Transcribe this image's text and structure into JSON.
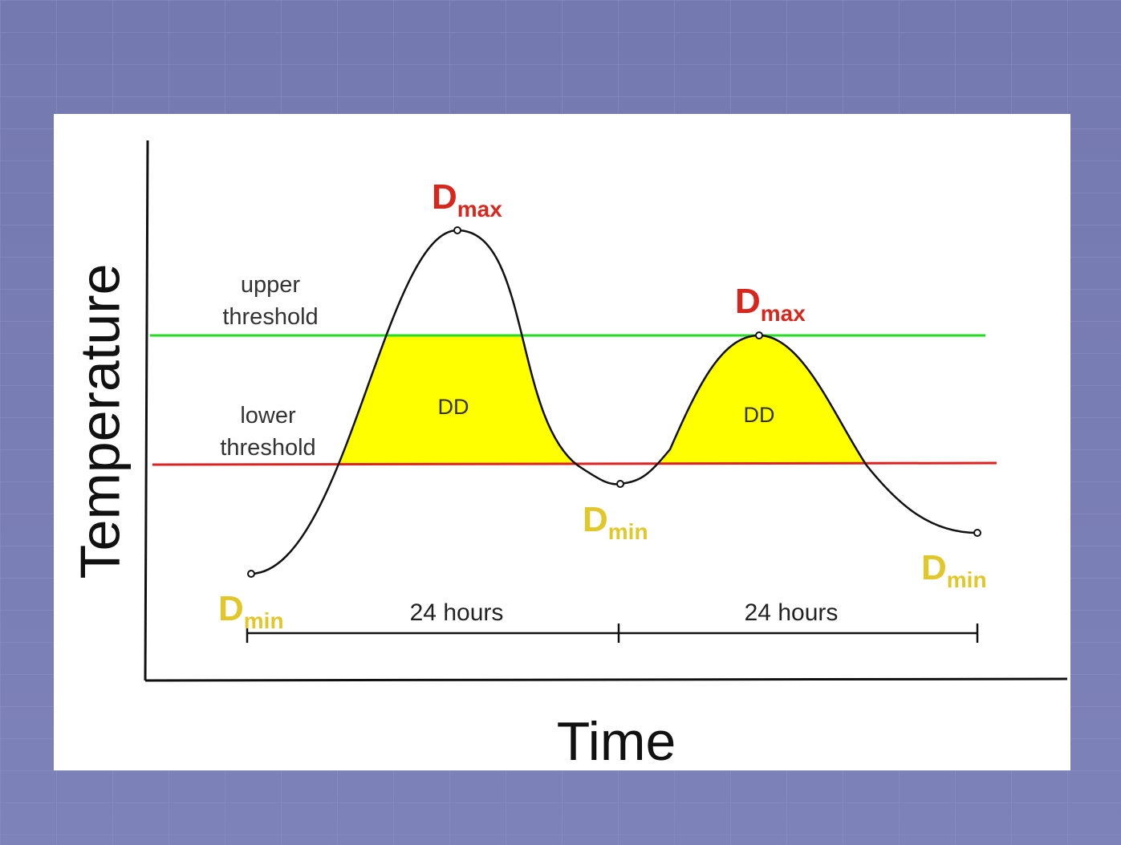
{
  "y_axis_label": "Temperature",
  "x_axis_label": "Time",
  "thresholds": [
    {
      "lines": [
        "upper",
        "threshold"
      ]
    },
    {
      "lines": [
        "lower",
        "threshold"
      ]
    }
  ],
  "areas": [
    "DD",
    "DD"
  ],
  "points": [
    {
      "main": "D",
      "sub": "min"
    },
    {
      "main": "D",
      "sub": "max"
    },
    {
      "main": "D",
      "sub": "min"
    },
    {
      "main": "D",
      "sub": "max"
    },
    {
      "main": "D",
      "sub": "min"
    }
  ],
  "durations": [
    "24 hours",
    "24 hours"
  ]
}
